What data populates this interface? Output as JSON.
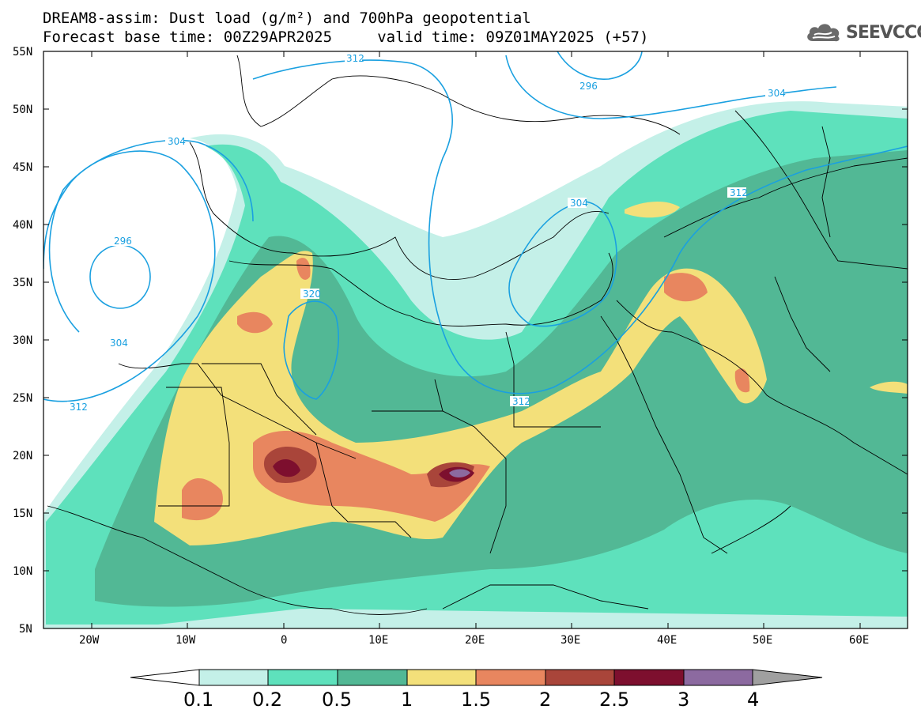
{
  "title_line1": "DREAM8-assim: Dust load (g/m²) and 700hPa geopotential",
  "title_line2": "Forecast base time: 00Z29APR2025     valid time: 09Z01MAY2025 (+57)",
  "brand": {
    "name": "SEEVCCC",
    "icon": "cloud-logo-icon"
  },
  "map": {
    "lon_range": [
      -25,
      65
    ],
    "lat_range": [
      5,
      55
    ],
    "lat_ticks": [
      "55N",
      "50N",
      "45N",
      "40N",
      "35N",
      "30N",
      "25N",
      "20N",
      "15N",
      "10N",
      "5N"
    ],
    "lon_ticks": [
      "20W",
      "10W",
      "0",
      "10E",
      "20E",
      "30E",
      "40E",
      "50E",
      "60E"
    ],
    "contour_labels": [
      "312",
      "304",
      "296",
      "320",
      "304",
      "312",
      "304",
      "312",
      "296",
      "304",
      "312"
    ]
  },
  "colorbar": {
    "labels": [
      "0.1",
      "0.2",
      "0.5",
      "1",
      "1.5",
      "2",
      "2.5",
      "3",
      "4"
    ],
    "colors": [
      "#ffffff",
      "#c4f0e8",
      "#5ee1bc",
      "#52b895",
      "#f3e07a",
      "#e8865f",
      "#a9453a",
      "#7d0f2e",
      "#8c6aa0",
      "#a0a0a0"
    ]
  }
}
